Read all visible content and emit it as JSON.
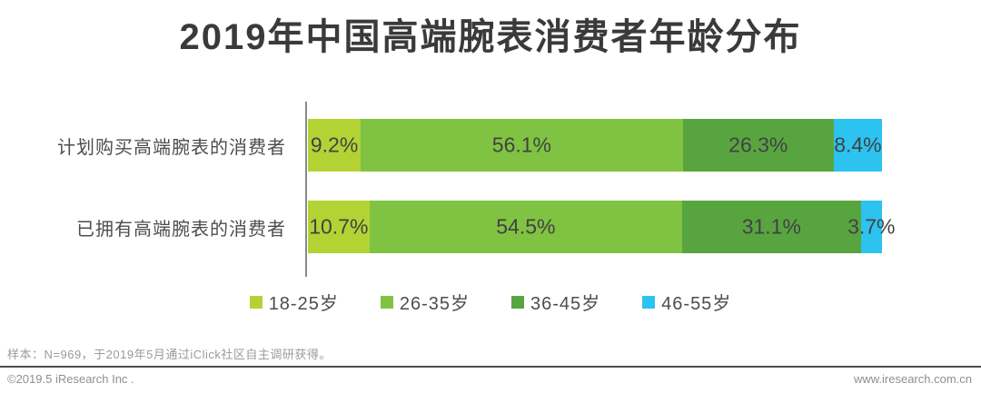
{
  "title": "2019年中国高端腕表消费者年龄分布",
  "chart_data": {
    "type": "bar",
    "orientation": "horizontal-stacked",
    "title": "2019年中国高端腕表消费者年龄分布",
    "categories": [
      "计划购买高端腕表的消费者",
      "已拥有高端腕表的消费者"
    ],
    "series": [
      {
        "name": "18-25岁",
        "color": "#b3d335",
        "values": [
          9.2,
          10.7
        ]
      },
      {
        "name": "26-35岁",
        "color": "#80c342",
        "values": [
          56.1,
          54.5
        ]
      },
      {
        "name": "36-45岁",
        "color": "#58a540",
        "values": [
          26.3,
          31.1
        ]
      },
      {
        "name": "46-55岁",
        "color": "#2dc3f0",
        "values": [
          8.4,
          3.7
        ]
      }
    ],
    "value_format": "percent",
    "xlim": [
      0,
      100
    ],
    "grid": false,
    "legend_position": "bottom",
    "axis_line_color": "#8a8a8a"
  },
  "footer": {
    "note": "样本：N=969，于2019年5月通过iClick社区自主调研获得。",
    "copyright": "©2019.5 iResearch Inc .",
    "website": "www.iresearch.com.cn"
  }
}
